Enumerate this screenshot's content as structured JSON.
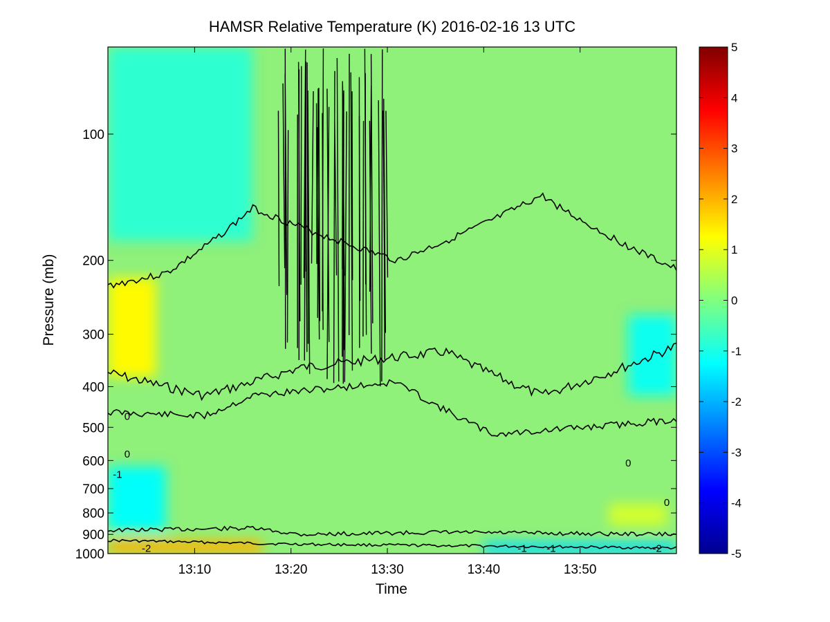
{
  "chart_data": {
    "type": "heatmap",
    "title": "HAMSR  Relative Temperature (K) 2016-02-16 13 UTC",
    "xlabel": "Time",
    "ylabel": "Pressure (mb)",
    "x_range": [
      "13:01",
      "14:00"
    ],
    "x_ticks": [
      "13:10",
      "13:20",
      "13:30",
      "13:40",
      "13:50"
    ],
    "y_scale": "log",
    "y_reversed": true,
    "y_range": [
      62,
      1000
    ],
    "y_ticks": [
      100,
      200,
      300,
      400,
      500,
      600,
      700,
      800,
      900,
      1000
    ],
    "colorbar": {
      "colormap": "jet",
      "range": [
        -5,
        5
      ],
      "ticks": [
        5,
        4,
        3,
        2,
        1,
        0,
        -1,
        -2,
        -3,
        -4,
        -5
      ]
    },
    "contour_interval": 1,
    "contour_line_color": "#000000",
    "contour_labels": [
      "0",
      "-1",
      "-2",
      "0",
      "-1",
      "-2",
      "0",
      "0",
      "-1"
    ],
    "regions": [
      {
        "description": "warm anomaly upper troposphere",
        "time_range": [
          "13:01",
          "13:06"
        ],
        "pressure_range": [
          220,
          380
        ],
        "value": 1.3
      },
      {
        "description": "cold anomaly lower troposphere",
        "time_range": [
          "13:01",
          "13:07"
        ],
        "pressure_range": [
          620,
          880
        ],
        "value": -1.2
      },
      {
        "description": "warm surface layer",
        "time_range": [
          "13:01",
          "13:17"
        ],
        "pressure_range": [
          930,
          1000
        ],
        "value": 2.0
      },
      {
        "description": "cool stratosphere",
        "time_range": [
          "13:01",
          "13:16"
        ],
        "pressure_range": [
          62,
          180
        ],
        "value": -0.8
      },
      {
        "description": "cold surface layer",
        "time_range": [
          "13:40",
          "14:00"
        ],
        "pressure_range": [
          940,
          1000
        ],
        "value": -1.6
      },
      {
        "description": "warm lower layer",
        "time_range": [
          "13:53",
          "13:59"
        ],
        "pressure_range": [
          760,
          860
        ],
        "value": 0.8
      },
      {
        "description": "cold mid layer",
        "time_range": [
          "13:55",
          "14:00"
        ],
        "pressure_range": [
          270,
          420
        ],
        "value": -1.1
      }
    ],
    "grid": false,
    "legend": "colorbar-right"
  },
  "colors": {
    "background": "#ffffff",
    "axes": "#000000",
    "contour": "#000000"
  }
}
